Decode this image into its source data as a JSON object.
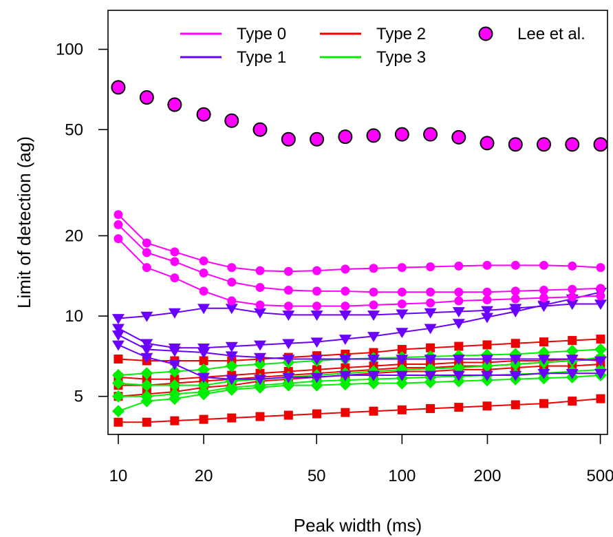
{
  "chart_data": {
    "type": "line",
    "title": "",
    "xlabel": "Peak width (ms)",
    "ylabel": "Limit of detection (ag)",
    "x_scale": "log",
    "y_scale": "log",
    "xlim": [
      9.2,
      530
    ],
    "ylim": [
      3.6,
      140
    ],
    "x_ticks": [
      10,
      20,
      50,
      100,
      200,
      500
    ],
    "x_tick_labels": [
      "10",
      "20",
      "50",
      "100",
      "200",
      "500"
    ],
    "y_ticks": [
      5,
      10,
      20,
      50,
      100
    ],
    "y_tick_labels": [
      "5",
      "10",
      "20",
      "50",
      "100"
    ],
    "grid": false,
    "legend_position": "top",
    "x": [
      10,
      12.6,
      15.8,
      20,
      25.1,
      31.6,
      39.8,
      50.1,
      63.1,
      79.4,
      100,
      125.9,
      158.5,
      199.5,
      251.2,
      316.2,
      398.1,
      501.2
    ],
    "legend": [
      {
        "label": "Type 0",
        "color": "#ff00ff",
        "kind": "line"
      },
      {
        "label": "Type 2",
        "color": "#ee0000",
        "kind": "line"
      },
      {
        "label": "Lee et al.",
        "color": "#ff00ff",
        "kind": "point"
      },
      {
        "label": "Type 1",
        "color": "#6a00ff",
        "kind": "line"
      },
      {
        "label": "Type 3",
        "color": "#00ee00",
        "kind": "line"
      }
    ],
    "series": [
      {
        "type": "Type 0",
        "color": "#ff00ff",
        "marker": "circle",
        "values": [
          24,
          18.8,
          17.4,
          16.1,
          15.2,
          14.8,
          14.7,
          14.8,
          15.0,
          15.1,
          15.2,
          15.3,
          15.4,
          15.5,
          15.5,
          15.5,
          15.4,
          15.2
        ]
      },
      {
        "type": "Type 0",
        "color": "#ff00ff",
        "marker": "circle",
        "values": [
          22,
          17.3,
          16.0,
          14.5,
          13.4,
          12.8,
          12.5,
          12.4,
          12.4,
          12.3,
          12.3,
          12.3,
          12.3,
          12.3,
          12.4,
          12.5,
          12.6,
          12.7
        ]
      },
      {
        "type": "Type 0",
        "color": "#ff00ff",
        "marker": "circle",
        "values": [
          19.5,
          15.2,
          13.9,
          12.4,
          11.4,
          11.0,
          10.9,
          10.9,
          10.9,
          11.0,
          11.1,
          11.2,
          11.4,
          11.5,
          11.6,
          11.7,
          11.8,
          11.9
        ]
      },
      {
        "type": "Type 1",
        "color": "#6a00ff",
        "marker": "triangle-down",
        "values": [
          9.8,
          10.0,
          10.3,
          10.7,
          10.7,
          10.3,
          10.1,
          10.1,
          10.1,
          10.1,
          10.2,
          10.3,
          10.4,
          10.5,
          10.7,
          10.9,
          11.1,
          11.1
        ]
      },
      {
        "type": "Type 1",
        "color": "#6a00ff",
        "marker": "triangle-down",
        "values": [
          9.0,
          7.9,
          7.6,
          7.6,
          7.7,
          7.8,
          7.9,
          8.0,
          8.2,
          8.4,
          8.7,
          9.0,
          9.4,
          9.9,
          10.4,
          11.0,
          11.6,
          12.3
        ]
      },
      {
        "type": "Type 1",
        "color": "#6a00ff",
        "marker": "triangle-down",
        "values": [
          8.5,
          7.5,
          7.4,
          7.3,
          7.1,
          7.0,
          6.9,
          6.9,
          6.9,
          6.9,
          6.9,
          6.9,
          6.9,
          6.9,
          6.9,
          6.9,
          6.9,
          6.8
        ]
      },
      {
        "type": "Type 1",
        "color": "#6a00ff",
        "marker": "triangle-down",
        "values": [
          7.8,
          7.0,
          6.6,
          5.9,
          5.8,
          5.8,
          5.9,
          5.9,
          6.0,
          6.0,
          6.0,
          6.0,
          6.0,
          6.0,
          6.0,
          6.1,
          6.1,
          6.1
        ]
      },
      {
        "type": "Type 2",
        "color": "#ee0000",
        "marker": "square",
        "values": [
          6.9,
          6.8,
          6.8,
          6.8,
          6.8,
          6.9,
          7.0,
          7.1,
          7.2,
          7.3,
          7.5,
          7.6,
          7.7,
          7.8,
          7.9,
          8.0,
          8.1,
          8.2
        ]
      },
      {
        "type": "Type 2",
        "color": "#ee0000",
        "marker": "square",
        "values": [
          5.9,
          5.8,
          5.8,
          5.9,
          6.0,
          6.1,
          6.2,
          6.3,
          6.4,
          6.5,
          6.6,
          6.6,
          6.7,
          6.7,
          6.8,
          6.8,
          6.9,
          6.9
        ]
      },
      {
        "type": "Type 2",
        "color": "#ee0000",
        "marker": "square",
        "values": [
          5.5,
          5.5,
          5.6,
          5.7,
          5.8,
          5.9,
          6.0,
          6.1,
          6.2,
          6.3,
          6.4,
          6.4,
          6.5,
          6.5,
          6.6,
          6.7,
          6.8,
          6.9
        ]
      },
      {
        "type": "Type 2",
        "color": "#ee0000",
        "marker": "square",
        "values": [
          5.0,
          5.1,
          5.2,
          5.4,
          5.5,
          5.7,
          5.8,
          5.9,
          6.0,
          6.1,
          6.2,
          6.2,
          6.3,
          6.3,
          6.4,
          6.5,
          6.5,
          6.6
        ]
      },
      {
        "type": "Type 2",
        "color": "#ee0000",
        "marker": "square",
        "values": [
          4.0,
          4.0,
          4.05,
          4.1,
          4.15,
          4.2,
          4.25,
          4.3,
          4.35,
          4.4,
          4.45,
          4.5,
          4.55,
          4.6,
          4.65,
          4.7,
          4.8,
          4.9
        ]
      },
      {
        "type": "Type 3",
        "color": "#00ee00",
        "marker": "diamond",
        "values": [
          6.0,
          6.1,
          6.2,
          6.3,
          6.5,
          6.6,
          6.7,
          6.8,
          6.9,
          6.95,
          7.0,
          7.05,
          7.1,
          7.15,
          7.2,
          7.3,
          7.4,
          7.5
        ]
      },
      {
        "type": "Type 3",
        "color": "#00ee00",
        "marker": "diamond",
        "values": [
          5.6,
          5.5,
          5.5,
          5.5,
          5.7,
          5.8,
          5.9,
          6.0,
          6.1,
          6.2,
          6.3,
          6.35,
          6.4,
          6.5,
          6.6,
          6.7,
          6.8,
          7.0
        ]
      },
      {
        "type": "Type 3",
        "color": "#00ee00",
        "marker": "diamond",
        "values": [
          5.0,
          5.0,
          5.1,
          5.2,
          5.4,
          5.5,
          5.6,
          5.7,
          5.75,
          5.8,
          5.85,
          5.9,
          5.95,
          6.0,
          6.05,
          6.1,
          6.2,
          6.3
        ]
      },
      {
        "type": "Type 3",
        "color": "#00ee00",
        "marker": "diamond",
        "values": [
          4.4,
          4.8,
          4.9,
          5.1,
          5.3,
          5.4,
          5.5,
          5.5,
          5.55,
          5.6,
          5.6,
          5.65,
          5.7,
          5.75,
          5.8,
          5.85,
          5.9,
          6.0
        ]
      },
      {
        "type": "Lee et al.",
        "color": "#ff00ff",
        "marker": "circle-outlined",
        "values": [
          72,
          66,
          62,
          57,
          54,
          50,
          46,
          46,
          47,
          47.5,
          48,
          48,
          46.8,
          44.5,
          44,
          44,
          44,
          44
        ]
      }
    ]
  }
}
